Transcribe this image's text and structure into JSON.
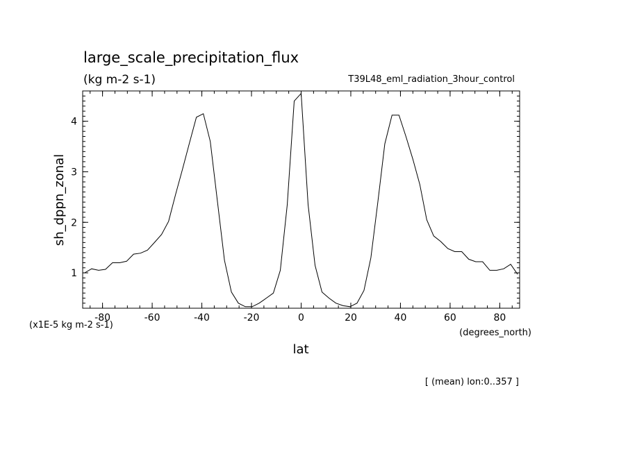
{
  "chart_data": {
    "type": "line",
    "title": "large_scale_precipitation_flux",
    "units": "(kg m-2 s-1)",
    "experiment": "T39L48_eml_radiation_3hour_control",
    "xlabel": "lat",
    "xunits": "(degrees_north)",
    "ylabel": "sh_dppn_zonal",
    "yscale_note": "(x1E-5 kg m-2 s-1)",
    "footnote": "[ (mean) lon:0..357 ]",
    "xlim": [
      -88,
      88
    ],
    "ylim": [
      0.3,
      4.6
    ],
    "x_ticks": [
      -80,
      -60,
      -40,
      -20,
      0,
      20,
      40,
      60,
      80
    ],
    "x_tick_labels": [
      "-80",
      "-60",
      "-40",
      "-20",
      "0",
      "20",
      "40",
      "60",
      "80"
    ],
    "y_ticks": [
      1,
      2,
      3,
      4
    ],
    "y_tick_labels": [
      "1",
      "2",
      "3",
      "4"
    ],
    "grid": false,
    "line_color": "#000000",
    "x": [
      -87.2,
      -84.4,
      -81.6,
      -78.8,
      -76.0,
      -73.1,
      -70.3,
      -67.5,
      -64.7,
      -61.9,
      -59.1,
      -56.2,
      -53.4,
      -50.6,
      -47.8,
      -45.0,
      -42.2,
      -39.4,
      -36.6,
      -33.7,
      -30.9,
      -28.1,
      -25.3,
      -22.5,
      -19.7,
      -16.9,
      -14.0,
      -11.2,
      -8.4,
      -5.6,
      -2.8,
      0.0,
      2.8,
      5.6,
      8.4,
      11.2,
      14.0,
      16.9,
      19.7,
      22.5,
      25.3,
      28.1,
      30.9,
      33.7,
      36.6,
      39.4,
      42.2,
      45.0,
      47.8,
      50.6,
      53.4,
      56.2,
      59.1,
      61.9,
      64.7,
      67.5,
      70.3,
      73.1,
      76.0,
      78.8,
      81.6,
      84.4,
      87.2
    ],
    "y": [
      1.0,
      1.08,
      1.05,
      1.07,
      1.2,
      1.2,
      1.23,
      1.37,
      1.39,
      1.45,
      1.6,
      1.76,
      2.02,
      2.55,
      3.05,
      3.57,
      4.08,
      4.15,
      3.6,
      2.4,
      1.25,
      0.62,
      0.4,
      0.33,
      0.33,
      0.4,
      0.5,
      0.6,
      1.05,
      2.35,
      4.4,
      4.55,
      2.35,
      1.15,
      0.62,
      0.5,
      0.4,
      0.35,
      0.33,
      0.4,
      0.65,
      1.3,
      2.4,
      3.55,
      4.12,
      4.12,
      3.7,
      3.25,
      2.75,
      2.05,
      1.73,
      1.62,
      1.48,
      1.42,
      1.42,
      1.27,
      1.22,
      1.22,
      1.05,
      1.05,
      1.08,
      1.17,
      0.97
    ]
  }
}
